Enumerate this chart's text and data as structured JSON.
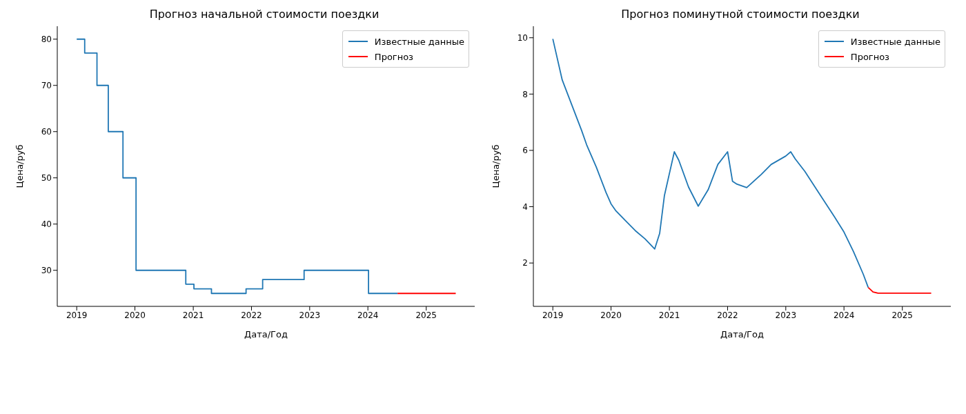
{
  "chart_data": [
    {
      "type": "step",
      "title": "Прогноз начальной стоимости поездки",
      "xlabel": "Дата/Год",
      "ylabel": "Цена/руб",
      "xlim": [
        "2018-09-01",
        "2025-11-01"
      ],
      "xticks": [
        "2019",
        "2020",
        "2021",
        "2022",
        "2023",
        "2024",
        "2025"
      ],
      "ylim": [
        22.2,
        82.8
      ],
      "yticks": [
        30,
        40,
        50,
        60,
        70,
        80
      ],
      "legend": "top right",
      "series": [
        {
          "name": "Известные данные",
          "color": "#1f77b4",
          "x": [
            "2019-01-01",
            "2019-02-20",
            "2019-05-08",
            "2019-07-18",
            "2019-10-18",
            "2020-01-08",
            "2020-11-15",
            "2021-01-05",
            "2021-04-25",
            "2021-11-28",
            "2022-03-12",
            "2022-11-27",
            "2024-01-05",
            "2024-07-05"
          ],
          "values": [
            80,
            77,
            70,
            60,
            50,
            30,
            27,
            26,
            25,
            26,
            28,
            30,
            25,
            25
          ]
        },
        {
          "name": "Прогноз",
          "color": "#ff0000",
          "x": [
            "2024-07-05",
            "2025-07-05"
          ],
          "values": [
            25,
            25
          ]
        }
      ]
    },
    {
      "type": "line",
      "title": "Прогноз поминутной стоимости поездки",
      "xlabel": "Дата/Год",
      "ylabel": "Цена/руб",
      "xlim": [
        "2018-09-01",
        "2025-11-01"
      ],
      "xticks": [
        "2019",
        "2020",
        "2021",
        "2022",
        "2023",
        "2024",
        "2025"
      ],
      "ylim": [
        0.46,
        10.41
      ],
      "yticks": [
        2,
        4,
        6,
        8,
        10
      ],
      "legend": "top right",
      "series": [
        {
          "name": "Известные данные",
          "color": "#1f77b4",
          "x": [
            "2019-01",
            "2019-03",
            "2019-05",
            "2019-07",
            "2019-08",
            "2019-10",
            "2019-12",
            "2020-01",
            "2020-02",
            "2020-04",
            "2020-06",
            "2020-08",
            "2020-10",
            "2020-11",
            "2020-12",
            "2021-02",
            "2021-03",
            "2021-05",
            "2021-07",
            "2021-09",
            "2021-11",
            "2022-01",
            "2022-02",
            "2022-03",
            "2022-05",
            "2022-08",
            "2022-10",
            "2023-01",
            "2023-02",
            "2023-03",
            "2023-05",
            "2023-08",
            "2023-11",
            "2024-01",
            "2024-03",
            "2024-05",
            "2024-06"
          ],
          "values": [
            9.96,
            8.5,
            7.6,
            6.7,
            6.2,
            5.4,
            4.5,
            4.1,
            3.85,
            3.5,
            3.15,
            2.86,
            2.5,
            3.05,
            4.4,
            5.95,
            5.65,
            4.7,
            4.02,
            4.6,
            5.5,
            5.95,
            4.9,
            4.8,
            4.68,
            5.15,
            5.5,
            5.8,
            5.95,
            5.7,
            5.25,
            4.45,
            3.65,
            3.1,
            2.4,
            1.6,
            1.13
          ]
        },
        {
          "name": "Прогноз",
          "color": "#ff0000",
          "x": [
            "2024-06",
            "2024-07",
            "2024-08",
            "2025-07"
          ],
          "values": [
            1.13,
            0.97,
            0.93,
            0.93
          ]
        }
      ]
    }
  ]
}
